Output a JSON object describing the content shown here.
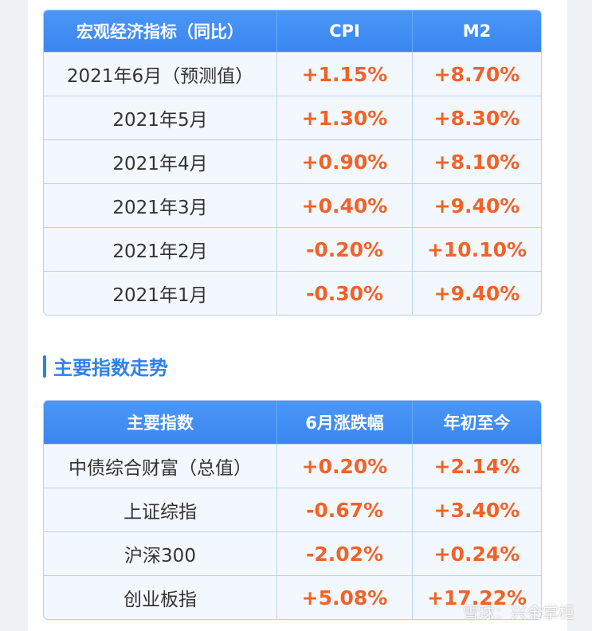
{
  "table1": {
    "header": [
      "宏观经济指标（同比）",
      "CPI",
      "M2"
    ],
    "rows": [
      [
        "2021年6月（预测值）",
        "+1.15%",
        "+8.70%"
      ],
      [
        "2021年5月",
        "+1.30%",
        "+8.30%"
      ],
      [
        "2021年4月",
        "+0.90%",
        "+8.10%"
      ],
      [
        "2021年3月",
        "+0.40%",
        "+9.40%"
      ],
      [
        "2021年2月",
        "-0.20%",
        "+10.10%"
      ],
      [
        "2021年1月",
        "-0.30%",
        "+9.40%"
      ]
    ]
  },
  "section_title": "主要指数走势",
  "table2": {
    "header": [
      "主要指数",
      "6月涨跌幅",
      "年初至今"
    ],
    "rows": [
      [
        "中债综合财富（总值）",
        "+0.20%",
        "+2.14%"
      ],
      [
        "上证综指",
        "-0.67%",
        "+3.40%"
      ],
      [
        "沪深300",
        "-2.02%",
        "+0.24%"
      ],
      [
        "创业板指",
        "+5.08%",
        "+17.22%"
      ]
    ]
  },
  "watermark": "雪球：兴全掌柜"
}
